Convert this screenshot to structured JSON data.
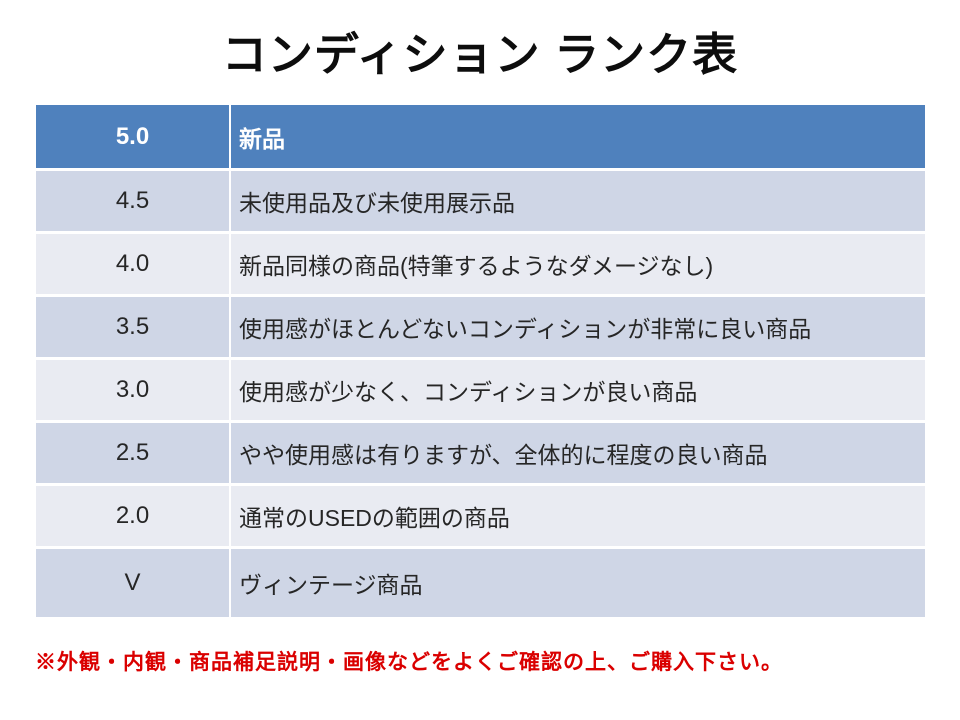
{
  "title": "コンディション ランク表",
  "table": {
    "rows": [
      {
        "grade": "5.0",
        "description": "新品"
      },
      {
        "grade": "4.5",
        "description": "未使用品及び未使用展示品"
      },
      {
        "grade": "4.0",
        "description": "新品同様の商品(特筆するようなダメージなし)"
      },
      {
        "grade": "3.5",
        "description": "使用感がほとんどないコンディションが非常に良い商品"
      },
      {
        "grade": "3.0",
        "description": "使用感が少なく、コンディションが良い商品"
      },
      {
        "grade": "2.5",
        "description": "やや使用感は有りますが、全体的に程度の良い商品"
      },
      {
        "grade": "2.0",
        "description": "通常のUSEDの範囲の商品"
      },
      {
        "grade": "V",
        "description": "ヴィンテージ商品"
      }
    ]
  },
  "note": "※外観・内観・商品補足説明・画像などをよくご確認の上、ご購入下さい。",
  "colors": {
    "header_bg": "#4F81BD",
    "header_text": "#FFFFFF",
    "band_dark": "#CFD6E6",
    "band_light": "#E9EBF2",
    "body_text": "#262626",
    "title_text": "#0D0D0D",
    "note_red": "#DA0000",
    "background": "#FFFFFF"
  }
}
